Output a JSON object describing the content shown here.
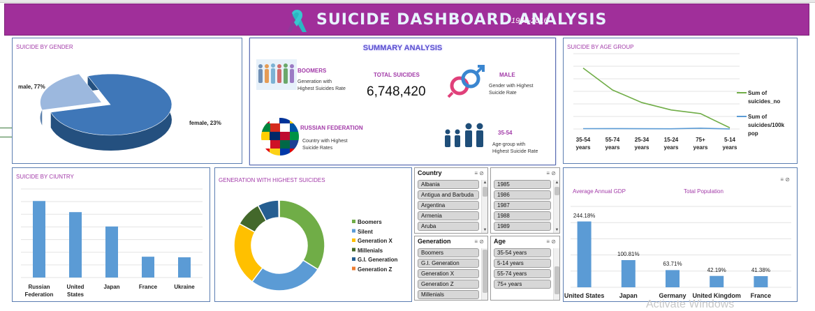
{
  "banner": {
    "title": "SUICIDE DASHBOARD ANALYSIS",
    "subtitle": "1985-2016",
    "ribbon_icon": "awareness-ribbon-icon",
    "bg": "#a02f9a"
  },
  "gender_panel": {
    "title": "SUICIDE BY GENDER",
    "chart_data": {
      "type": "pie",
      "categories": [
        "male",
        "female"
      ],
      "values": [
        77,
        23
      ],
      "labels": [
        "male, 77%",
        "female, 23%"
      ],
      "colors": [
        "#3f77b8",
        "#9cb8de"
      ]
    }
  },
  "summary": {
    "title": "SUMMARY ANALYSIS",
    "boomers": {
      "head": "BOOMERS",
      "text1": "Generation with",
      "text2": "Highest Suicides Rate"
    },
    "total": {
      "label": "TOTAL SUICIDES",
      "value": "6,748,420"
    },
    "male": {
      "head": "MALE",
      "text1": "Gender with Highest",
      "text2": "Suicide Rate"
    },
    "russia": {
      "head": "RUSSIAN FEDERATION",
      "text1": "Country with Highest",
      "text2": "Suicide Rates"
    },
    "age": {
      "head": "35-54",
      "text1": "Age-group with",
      "text2": "Highest Suicide Rate"
    }
  },
  "age_panel": {
    "title": "SUICIDE BY AGE GROUP",
    "chart_data": {
      "type": "line",
      "categories": [
        "35-54 years",
        "55-74 years",
        "25-34 years",
        "15-24 years",
        "75+ years",
        "5-14 years"
      ],
      "series": [
        {
          "name": "Sum of suicides_no",
          "values": [
            2588,
            1659,
            1124,
            809,
            654,
            52
          ],
          "color": "#70ad47"
        },
        {
          "name": "Sum of suicides/100k pop",
          "values": [
            15,
            18,
            12,
            10,
            35,
            2
          ],
          "color": "#5b9bd5"
        }
      ],
      "legend": [
        "Sum of",
        "suicides_no",
        "Sum of",
        "suicides/100k",
        "pop"
      ],
      "ylim": [
        0,
        3200
      ],
      "grid": true
    }
  },
  "country_panel": {
    "title": "SUICIDE BY CIUNTRY",
    "chart_data": {
      "type": "bar",
      "categories": [
        "Russian Federation",
        "United States",
        "Japan",
        "France",
        "Ukraine"
      ],
      "cat_lines": [
        [
          "Russian",
          "Federation"
        ],
        [
          "United",
          "States"
        ],
        [
          "Japan"
        ],
        [
          "France"
        ],
        [
          "Ukraine"
        ]
      ],
      "values": [
        1209742,
        1034013,
        806902,
        329127,
        319950
      ],
      "ylim": [
        0,
        1400000
      ],
      "color": "#5b9bd5",
      "grid": true
    }
  },
  "generation_panel": {
    "title": "GENERATION WITH HIGHEST SUICIDES",
    "chart_data": {
      "type": "pie",
      "donut": true,
      "categories": [
        "Boomers",
        "Silent",
        "Generation X",
        "Millenials",
        "G.I. Generation",
        "Generation Z"
      ],
      "values": [
        2284498,
        1781744,
        1532804,
        623459,
        510009,
        15906
      ],
      "colors": [
        "#70ad47",
        "#5b9bd5",
        "#ffc000",
        "#43682b",
        "#255e91",
        "#ed7d31"
      ]
    }
  },
  "slicers": {
    "country": {
      "header": "Country",
      "items": [
        "Albania",
        "Antigua and Barbuda",
        "Argentina",
        "Armenia",
        "Aruba"
      ]
    },
    "year": {
      "header": "",
      "items": [
        "1985",
        "1986",
        "1987",
        "1988",
        "1989"
      ]
    },
    "generation": {
      "header": "Generation",
      "items": [
        "Boomers",
        "G.I. Generation",
        "Generation X",
        "Generation Z",
        "Millenials"
      ]
    },
    "age": {
      "header": "Age",
      "items": [
        "35-54 years",
        "5-14 years",
        "55-74 years",
        "75+ years"
      ]
    },
    "icons": {
      "multiselect": "≡",
      "clear": "⊘"
    }
  },
  "gdp_panel": {
    "legend_left": "Average Annual GDP",
    "legend_right": "Total Population",
    "chart_data": {
      "type": "bar",
      "categories": [
        "United States",
        "Japan",
        "Germany",
        "United Kingdom",
        "France"
      ],
      "values": [
        244.18,
        100.81,
        63.71,
        42.19,
        41.38
      ],
      "labels": [
        "244.18%",
        "100.81%",
        "63.71%",
        "42.19%",
        "41.38%"
      ],
      "ylim": [
        0,
        300
      ],
      "color": "#5b9bd5",
      "grid": true
    }
  },
  "watermark": "Activate Windows"
}
